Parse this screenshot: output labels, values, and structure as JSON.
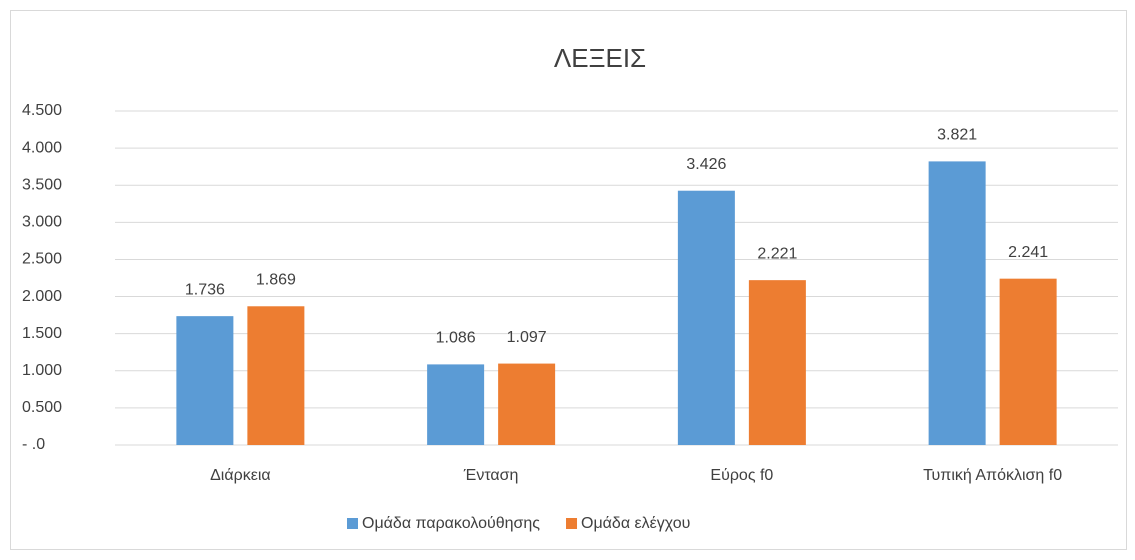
{
  "chart_data": {
    "type": "bar",
    "title": "ΛΕΞΕΙΣ",
    "categories": [
      "Διάρκεια",
      "Ένταση",
      "Εύρος f0",
      "Τυπική Απόκλιση f0"
    ],
    "series": [
      {
        "name": "Ομάδα παρακολούθησης",
        "color": "#5b9bd5",
        "values": [
          1736,
          1086,
          3426,
          3821
        ],
        "value_labels": [
          "1.736",
          "1.086",
          "3.426",
          "3.821"
        ]
      },
      {
        "name": "Ομάδα ελέγχου",
        "color": "#ed7d31",
        "values": [
          1869,
          1097,
          2221,
          2241
        ],
        "value_labels": [
          "1.869",
          "1.097",
          "2.221",
          "2.241"
        ]
      }
    ],
    "ylim": [
      0,
      4500
    ],
    "yticks": [
      {
        "value": 0,
        "label": "- .0"
      },
      {
        "value": 500,
        "label": "0.500"
      },
      {
        "value": 1000,
        "label": "1.000"
      },
      {
        "value": 1500,
        "label": "1.500"
      },
      {
        "value": 2000,
        "label": "2.000"
      },
      {
        "value": 2500,
        "label": "2.500"
      },
      {
        "value": 3000,
        "label": "3.000"
      },
      {
        "value": 3500,
        "label": "3.500"
      },
      {
        "value": 4000,
        "label": "4.000"
      },
      {
        "value": 4500,
        "label": "4.500"
      }
    ],
    "grid": true,
    "legend": "bottom"
  }
}
